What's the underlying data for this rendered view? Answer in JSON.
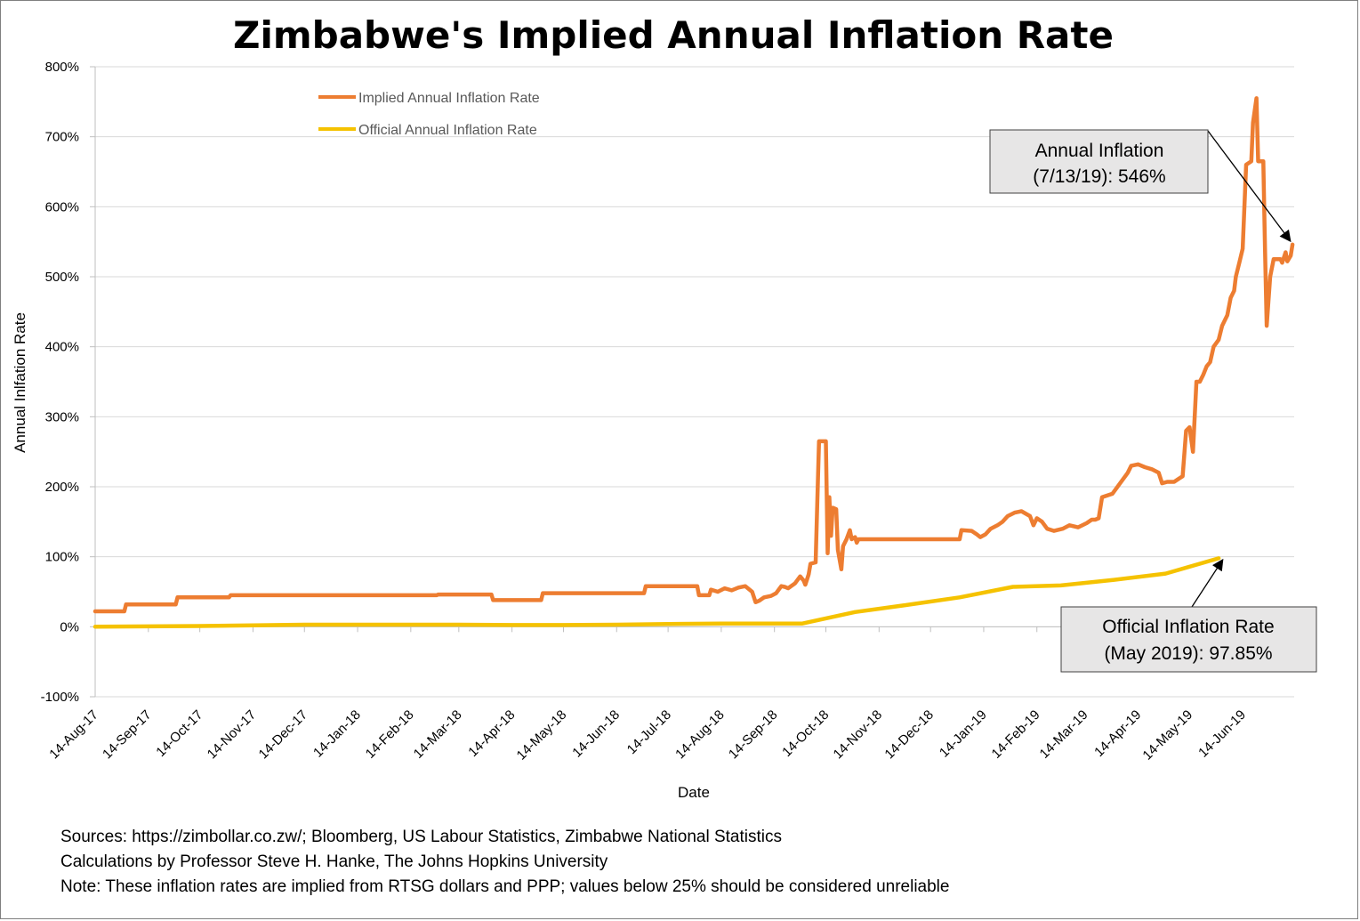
{
  "chart_data": {
    "type": "line",
    "title": "Zimbabwe's Implied Annual Inflation Rate",
    "xlabel": "Date",
    "ylabel": "Annual Inlfation Rate",
    "ylim": [
      -100,
      800
    ],
    "y_ticks": [
      "-100%",
      "0%",
      "100%",
      "200%",
      "300%",
      "400%",
      "500%",
      "600%",
      "700%",
      "800%"
    ],
    "y_tick_values": [
      -100,
      0,
      100,
      200,
      300,
      400,
      500,
      600,
      700,
      800
    ],
    "x_range": [
      "2017-08-14",
      "2019-07-14"
    ],
    "x_ticks": [
      "14-Aug-17",
      "14-Sep-17",
      "14-Oct-17",
      "14-Nov-17",
      "14-Dec-17",
      "14-Jan-18",
      "14-Feb-18",
      "14-Mar-18",
      "14-Apr-18",
      "14-May-18",
      "14-Jun-18",
      "14-Jul-18",
      "14-Aug-18",
      "14-Sep-18",
      "14-Oct-18",
      "14-Nov-18",
      "14-Dec-18",
      "14-Jan-19",
      "14-Feb-19",
      "14-Mar-19",
      "14-Apr-19",
      "14-May-19",
      "14-Jun-19"
    ],
    "x_tick_dates": [
      "2017-08-14",
      "2017-09-14",
      "2017-10-14",
      "2017-11-14",
      "2017-12-14",
      "2018-01-14",
      "2018-02-14",
      "2018-03-14",
      "2018-04-14",
      "2018-05-14",
      "2018-06-14",
      "2018-07-14",
      "2018-08-14",
      "2018-09-14",
      "2018-10-14",
      "2018-11-14",
      "2018-12-14",
      "2019-01-14",
      "2019-02-14",
      "2019-03-14",
      "2019-04-14",
      "2019-05-14",
      "2019-06-14"
    ],
    "grid": true,
    "legend_position": "top-left",
    "series": [
      {
        "name": "Implied Annual Inflation Rate",
        "color": "#ed7d31",
        "points": [
          [
            "2017-08-14",
            22
          ],
          [
            "2017-08-31",
            22
          ],
          [
            "2017-09-01",
            32
          ],
          [
            "2017-09-30",
            32
          ],
          [
            "2017-10-01",
            42
          ],
          [
            "2017-10-31",
            42
          ],
          [
            "2017-11-01",
            45
          ],
          [
            "2018-03-01",
            45
          ],
          [
            "2018-03-02",
            46
          ],
          [
            "2018-04-02",
            46
          ],
          [
            "2018-04-03",
            38
          ],
          [
            "2018-05-01",
            38
          ],
          [
            "2018-05-02",
            48
          ],
          [
            "2018-06-30",
            48
          ],
          [
            "2018-07-01",
            58
          ],
          [
            "2018-07-31",
            58
          ],
          [
            "2018-08-01",
            45
          ],
          [
            "2018-08-07",
            45
          ],
          [
            "2018-08-08",
            53
          ],
          [
            "2018-08-12",
            50
          ],
          [
            "2018-08-16",
            55
          ],
          [
            "2018-08-20",
            52
          ],
          [
            "2018-08-24",
            56
          ],
          [
            "2018-08-28",
            58
          ],
          [
            "2018-09-01",
            50
          ],
          [
            "2018-09-03",
            35
          ],
          [
            "2018-09-05",
            37
          ],
          [
            "2018-09-08",
            42
          ],
          [
            "2018-09-12",
            44
          ],
          [
            "2018-09-15",
            48
          ],
          [
            "2018-09-18",
            58
          ],
          [
            "2018-09-20",
            57
          ],
          [
            "2018-09-22",
            55
          ],
          [
            "2018-09-26",
            62
          ],
          [
            "2018-09-29",
            72
          ],
          [
            "2018-10-01",
            66
          ],
          [
            "2018-10-02",
            60
          ],
          [
            "2018-10-04",
            75
          ],
          [
            "2018-10-05",
            90
          ],
          [
            "2018-10-08",
            92
          ],
          [
            "2018-10-09",
            180
          ],
          [
            "2018-10-10",
            265
          ],
          [
            "2018-10-14",
            265
          ],
          [
            "2018-10-15",
            105
          ],
          [
            "2018-10-16",
            185
          ],
          [
            "2018-10-17",
            130
          ],
          [
            "2018-10-18",
            170
          ],
          [
            "2018-10-20",
            168
          ],
          [
            "2018-10-21",
            110
          ],
          [
            "2018-10-23",
            82
          ],
          [
            "2018-10-24",
            115
          ],
          [
            "2018-10-26",
            125
          ],
          [
            "2018-10-28",
            138
          ],
          [
            "2018-10-29",
            125
          ],
          [
            "2018-10-31",
            128
          ],
          [
            "2018-11-01",
            120
          ],
          [
            "2018-11-02",
            125
          ],
          [
            "2018-12-31",
            125
          ],
          [
            "2019-01-01",
            138
          ],
          [
            "2019-01-07",
            137
          ],
          [
            "2019-01-10",
            132
          ],
          [
            "2019-01-12",
            128
          ],
          [
            "2019-01-15",
            132
          ],
          [
            "2019-01-18",
            140
          ],
          [
            "2019-01-22",
            145
          ],
          [
            "2019-01-25",
            150
          ],
          [
            "2019-01-28",
            158
          ],
          [
            "2019-02-01",
            163
          ],
          [
            "2019-02-05",
            165
          ],
          [
            "2019-02-10",
            158
          ],
          [
            "2019-02-12",
            145
          ],
          [
            "2019-02-14",
            155
          ],
          [
            "2019-02-17",
            150
          ],
          [
            "2019-02-20",
            140
          ],
          [
            "2019-02-24",
            137
          ],
          [
            "2019-03-01",
            140
          ],
          [
            "2019-03-05",
            145
          ],
          [
            "2019-03-10",
            142
          ],
          [
            "2019-03-15",
            148
          ],
          [
            "2019-03-18",
            153
          ],
          [
            "2019-03-20",
            153
          ],
          [
            "2019-03-22",
            155
          ],
          [
            "2019-03-24",
            185
          ],
          [
            "2019-03-30",
            190
          ],
          [
            "2019-04-05",
            210
          ],
          [
            "2019-04-08",
            220
          ],
          [
            "2019-04-10",
            230
          ],
          [
            "2019-04-14",
            232
          ],
          [
            "2019-04-18",
            228
          ],
          [
            "2019-04-22",
            225
          ],
          [
            "2019-04-26",
            220
          ],
          [
            "2019-04-28",
            205
          ],
          [
            "2019-05-01",
            207
          ],
          [
            "2019-05-05",
            207
          ],
          [
            "2019-05-08",
            212
          ],
          [
            "2019-05-10",
            215
          ],
          [
            "2019-05-12",
            280
          ],
          [
            "2019-05-14",
            285
          ],
          [
            "2019-05-16",
            250
          ],
          [
            "2019-05-18",
            350
          ],
          [
            "2019-05-20",
            350
          ],
          [
            "2019-05-22",
            360
          ],
          [
            "2019-05-24",
            372
          ],
          [
            "2019-05-26",
            378
          ],
          [
            "2019-05-28",
            400
          ],
          [
            "2019-05-31",
            410
          ],
          [
            "2019-06-02",
            430
          ],
          [
            "2019-06-05",
            445
          ],
          [
            "2019-06-07",
            470
          ],
          [
            "2019-06-09",
            480
          ],
          [
            "2019-06-10",
            500
          ],
          [
            "2019-06-12",
            520
          ],
          [
            "2019-06-14",
            540
          ],
          [
            "2019-06-16",
            660
          ],
          [
            "2019-06-19",
            665
          ],
          [
            "2019-06-20",
            720
          ],
          [
            "2019-06-22",
            755
          ],
          [
            "2019-06-23",
            665
          ],
          [
            "2019-06-26",
            665
          ],
          [
            "2019-06-27",
            540
          ],
          [
            "2019-06-28",
            430
          ],
          [
            "2019-06-30",
            500
          ],
          [
            "2019-07-02",
            525
          ],
          [
            "2019-07-06",
            525
          ],
          [
            "2019-07-07",
            520
          ],
          [
            "2019-07-09",
            535
          ],
          [
            "2019-07-10",
            522
          ],
          [
            "2019-07-12",
            530
          ],
          [
            "2019-07-13",
            546
          ]
        ]
      },
      {
        "name": "Official Annual Inflation Rate",
        "color": "#f5c200",
        "points": [
          [
            "2017-08-14",
            0
          ],
          [
            "2017-09-14",
            0.5
          ],
          [
            "2017-10-14",
            1
          ],
          [
            "2017-11-14",
            2
          ],
          [
            "2017-12-14",
            3
          ],
          [
            "2018-01-14",
            3
          ],
          [
            "2018-02-14",
            3
          ],
          [
            "2018-03-14",
            3
          ],
          [
            "2018-04-14",
            2.5
          ],
          [
            "2018-05-14",
            2.5
          ],
          [
            "2018-06-14",
            3
          ],
          [
            "2018-07-14",
            4
          ],
          [
            "2018-08-14",
            4.5
          ],
          [
            "2018-09-14",
            4.5
          ],
          [
            "2018-09-30",
            4.5
          ],
          [
            "2018-10-31",
            21
          ],
          [
            "2018-11-30",
            31
          ],
          [
            "2018-12-31",
            42
          ],
          [
            "2019-01-31",
            57
          ],
          [
            "2019-02-28",
            59
          ],
          [
            "2019-03-31",
            67
          ],
          [
            "2019-04-30",
            75.9
          ],
          [
            "2019-05-31",
            97.85
          ]
        ]
      }
    ],
    "annotations": [
      {
        "lines": [
          "Annual Inflation",
          "(7/13/19): 546%"
        ],
        "target_date": "2019-07-13",
        "target_value": 546
      },
      {
        "lines": [
          "Official Inflation Rate",
          "(May 2019): 97.85%"
        ],
        "target_date": "2019-05-31",
        "target_value": 97.85
      }
    ]
  },
  "footnotes": {
    "sources": "Sources: https://zimbollar.co.zw/; Bloomberg, US Labour Statistics, Zimbabwe National Statistics",
    "calculations": "Calculations by Professor Steve H. Hanke, The Johns Hopkins University",
    "note": "Note: These inflation rates are implied from RTSG dollars and PPP; values below 25% should be considered unreliable"
  }
}
